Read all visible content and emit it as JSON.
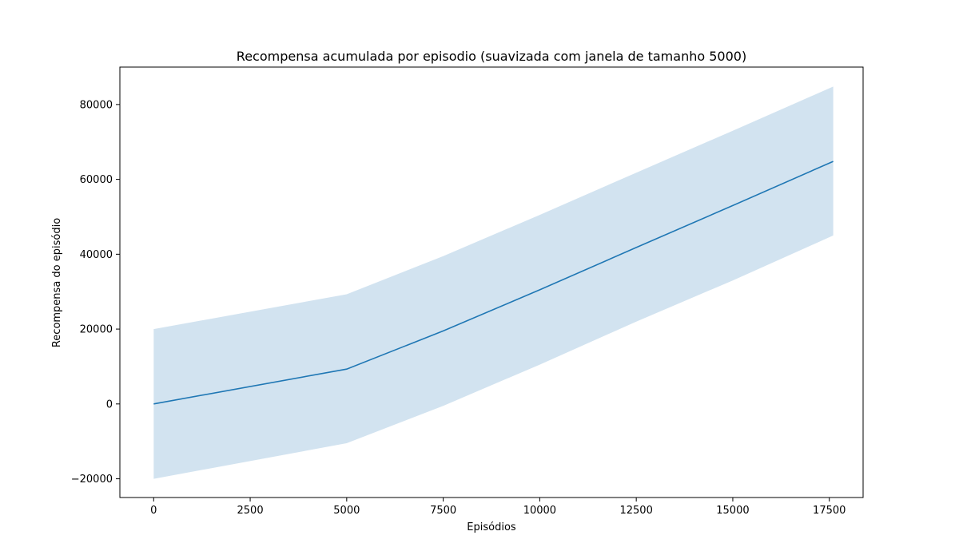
{
  "chart_data": {
    "type": "line",
    "title": "Recompensa acumulada por episodio (suavizada com janela de tamanho 5000)",
    "xlabel": "Episódios",
    "ylabel": "Recompensa do episódio",
    "xlim": [
      -875,
      18375
    ],
    "ylim": [
      -25000,
      90000
    ],
    "xticks": [
      0,
      2500,
      5000,
      7500,
      10000,
      12500,
      15000,
      17500
    ],
    "yticks": [
      -20000,
      0,
      20000,
      40000,
      60000,
      80000
    ],
    "grid": false,
    "series": [
      {
        "x": [
          0,
          5000,
          7500,
          10000,
          12500,
          15000,
          17600
        ],
        "y": [
          0,
          9300,
          19500,
          30500,
          41800,
          53000,
          64800
        ],
        "lower": [
          -20000,
          -10500,
          -500,
          10500,
          22000,
          33000,
          45000
        ],
        "upper": [
          20000,
          29300,
          39500,
          50500,
          61800,
          73000,
          84800
        ],
        "color": "#1f77b4",
        "band_color": "#d2e3f0"
      }
    ]
  }
}
